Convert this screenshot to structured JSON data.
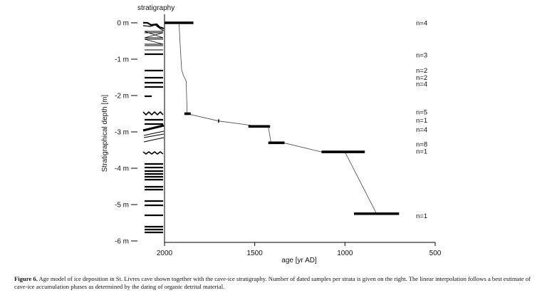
{
  "chart_data": {
    "type": "line",
    "title": "",
    "xlabel": "age [yr AD]",
    "ylabel": "Stratigraphical depth [m]",
    "x_reversed": true,
    "xlim": [
      2000,
      500
    ],
    "ylim": [
      0,
      -6
    ],
    "x_ticks": [
      {
        "value": 2000,
        "label": "2000"
      },
      {
        "value": 1500,
        "label": "1500"
      },
      {
        "value": 1000,
        "label": "1000"
      },
      {
        "value": 500,
        "label": "500"
      }
    ],
    "y_ticks": [
      {
        "value": 0,
        "label": "0 m"
      },
      {
        "value": -1,
        "label": "-1 m"
      },
      {
        "value": -2,
        "label": "-2 m"
      },
      {
        "value": -3,
        "label": "-3 m"
      },
      {
        "value": -4,
        "label": "-4 m"
      },
      {
        "value": -5,
        "label": "-5 m"
      },
      {
        "value": -6,
        "label": "-6 m"
      }
    ],
    "column_label": "stratigraphy",
    "age_ranges": [
      {
        "depth": 0.0,
        "age_min": 1840,
        "age_max": 2000,
        "age_mid": 1920
      },
      {
        "depth": -2.5,
        "age_min": 1855,
        "age_max": 1890,
        "age_mid": 1872
      },
      {
        "depth": -2.7,
        "age_min": 1697,
        "age_max": 1703,
        "age_mid": 1700
      },
      {
        "depth": -2.85,
        "age_min": 1415,
        "age_max": 1535,
        "age_mid": 1475
      },
      {
        "depth": -3.3,
        "age_min": 1335,
        "age_max": 1425,
        "age_mid": 1380
      },
      {
        "depth": -3.55,
        "age_min": 890,
        "age_max": 1130,
        "age_mid": 1010
      },
      {
        "depth": -5.25,
        "age_min": 700,
        "age_max": 950,
        "age_mid": 825
      }
    ],
    "age_model_line": [
      {
        "age": 1920,
        "depth": 0.0
      },
      {
        "age": 1910,
        "depth": -0.9
      },
      {
        "age": 1905,
        "depth": -1.3
      },
      {
        "age": 1895,
        "depth": -1.45
      },
      {
        "age": 1880,
        "depth": -1.6
      },
      {
        "age": 1875,
        "depth": -2.5
      },
      {
        "age": 1700,
        "depth": -2.7
      },
      {
        "age": 1475,
        "depth": -2.85
      },
      {
        "age": 1425,
        "depth": -2.85
      },
      {
        "age": 1410,
        "depth": -3.3
      },
      {
        "age": 1340,
        "depth": -3.3
      },
      {
        "age": 1130,
        "depth": -3.55
      },
      {
        "age": 1000,
        "depth": -3.55
      },
      {
        "age": 825,
        "depth": -5.25
      }
    ],
    "sample_counts": [
      {
        "depth": 0.0,
        "label": "n=4"
      },
      {
        "depth": -0.88,
        "label": "n=3"
      },
      {
        "depth": -1.3,
        "label": "n=2"
      },
      {
        "depth": -1.5,
        "label": "n=2"
      },
      {
        "depth": -1.68,
        "label": "n=4"
      },
      {
        "depth": -2.45,
        "label": "n=5"
      },
      {
        "depth": -2.68,
        "label": "n=1"
      },
      {
        "depth": -2.93,
        "label": "n=4"
      },
      {
        "depth": -3.33,
        "label": "n=8"
      },
      {
        "depth": -3.53,
        "label": "n=1"
      },
      {
        "depth": -5.3,
        "label": "n=1"
      }
    ]
  },
  "caption": {
    "label": "Figure 6.",
    "text": " Age model of ice deposition in St. Livres cave shown together with the cave-ice stratigraphy. Number of dated samples per strata is given on the right. The linear interpolation follows a best estimate of cave-ice accumulation phases as determined by the dating of organic detrital material."
  }
}
